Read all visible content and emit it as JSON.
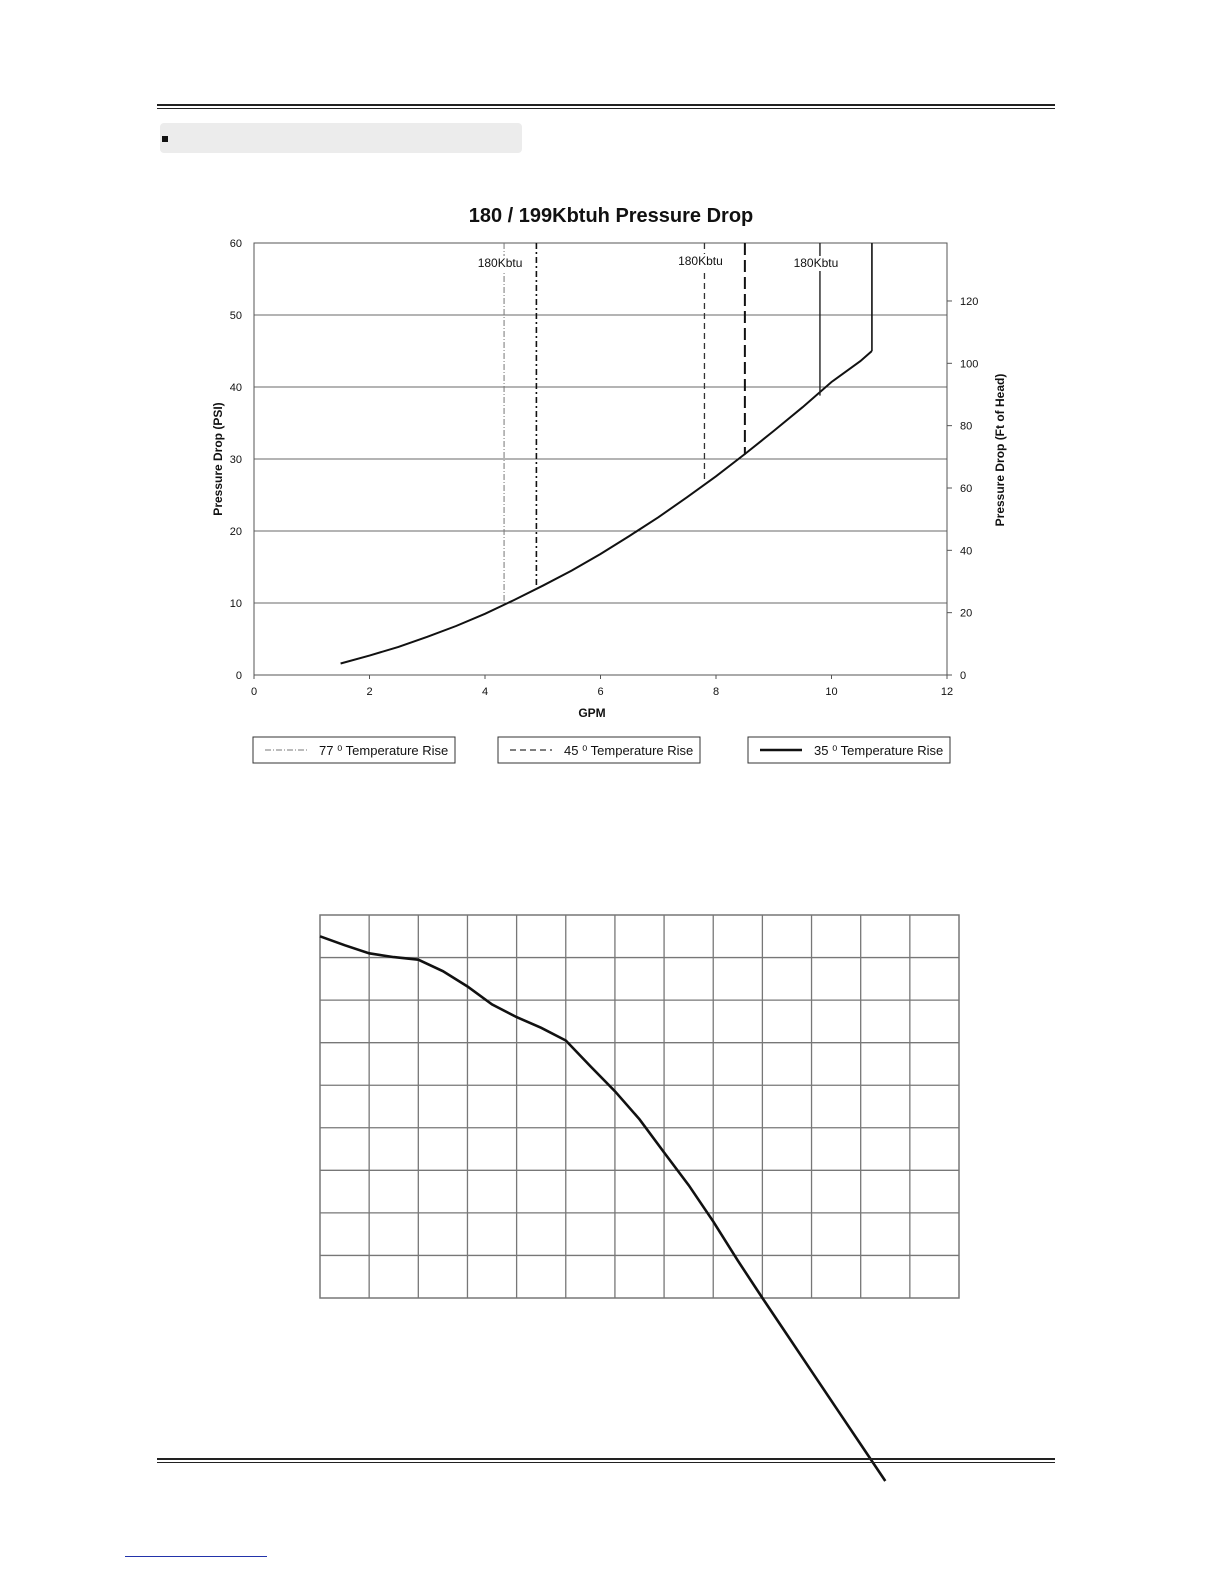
{
  "chart_data": [
    {
      "type": "line",
      "title": "180 / 199Kbtuh Pressure Drop",
      "xlabel": "GPM",
      "ylabel": "Pressure Drop (PSI)",
      "y2label": "Pressure Drop (Ft of Head)",
      "xlim": [
        0,
        12
      ],
      "ylim": [
        0,
        60
      ],
      "y2lim": [
        0,
        138.6
      ],
      "x_ticks": [
        "0",
        "2",
        "4",
        "6",
        "8",
        "10",
        "12"
      ],
      "y_ticks": [
        "0",
        "10",
        "20",
        "30",
        "40",
        "50",
        "60"
      ],
      "y2_ticks": [
        "0",
        "20",
        "40",
        "60",
        "80",
        "100",
        "120"
      ],
      "grid": true,
      "legend_position": "bottom",
      "curve": {
        "x": [
          1.5,
          2.0,
          2.5,
          3.0,
          3.5,
          4.0,
          4.5,
          5.0,
          5.5,
          6.0,
          6.5,
          7.0,
          7.5,
          8.0,
          8.5,
          9.0,
          9.5,
          10.0,
          10.5,
          10.7
        ],
        "y": [
          1.6,
          2.7,
          3.9,
          5.3,
          6.8,
          8.5,
          10.4,
          12.4,
          14.5,
          16.8,
          19.3,
          21.9,
          24.7,
          27.6,
          30.7,
          33.9,
          37.2,
          40.7,
          43.6,
          45.0
        ]
      },
      "series": [
        {
          "name": "77 ⁰ Temperature Rise",
          "style": "dash-dot-thin",
          "x": [
            4.33,
            4.89
          ],
          "y": [
            10.3,
            12.3
          ]
        },
        {
          "name": "45 ⁰ Temperature Rise",
          "style": "dashed",
          "x": [
            7.8,
            8.5
          ],
          "y": [
            26.8,
            30.6
          ]
        },
        {
          "name": "35 ⁰ Temperature Rise",
          "style": "solid",
          "x": [
            9.8,
            10.7
          ],
          "y": [
            38.8,
            45.0
          ]
        }
      ],
      "annotations": [
        "180Kbtu",
        "180Kbtu",
        "180Kbtu"
      ]
    },
    {
      "type": "line",
      "title": "",
      "grid": true,
      "grid_cols": 13,
      "grid_rows": 9,
      "x": [
        0.0,
        0.5,
        1.0,
        1.5,
        2.0,
        2.5,
        3.0,
        3.5,
        4.0,
        4.5,
        5.0,
        5.5,
        6.0,
        6.5,
        7.0,
        7.5,
        8.0,
        8.5,
        9.0,
        9.5,
        10.0,
        10.5,
        11.0,
        11.5
      ],
      "y": [
        8.5,
        8.29,
        8.1,
        8.01,
        7.95,
        7.68,
        7.32,
        6.9,
        6.6,
        6.35,
        6.05,
        5.45,
        4.86,
        4.2,
        3.42,
        2.65,
        1.8,
        0.88,
        0.0,
        -0.86,
        -1.72,
        -2.58,
        -3.44,
        -4.3
      ]
    }
  ]
}
